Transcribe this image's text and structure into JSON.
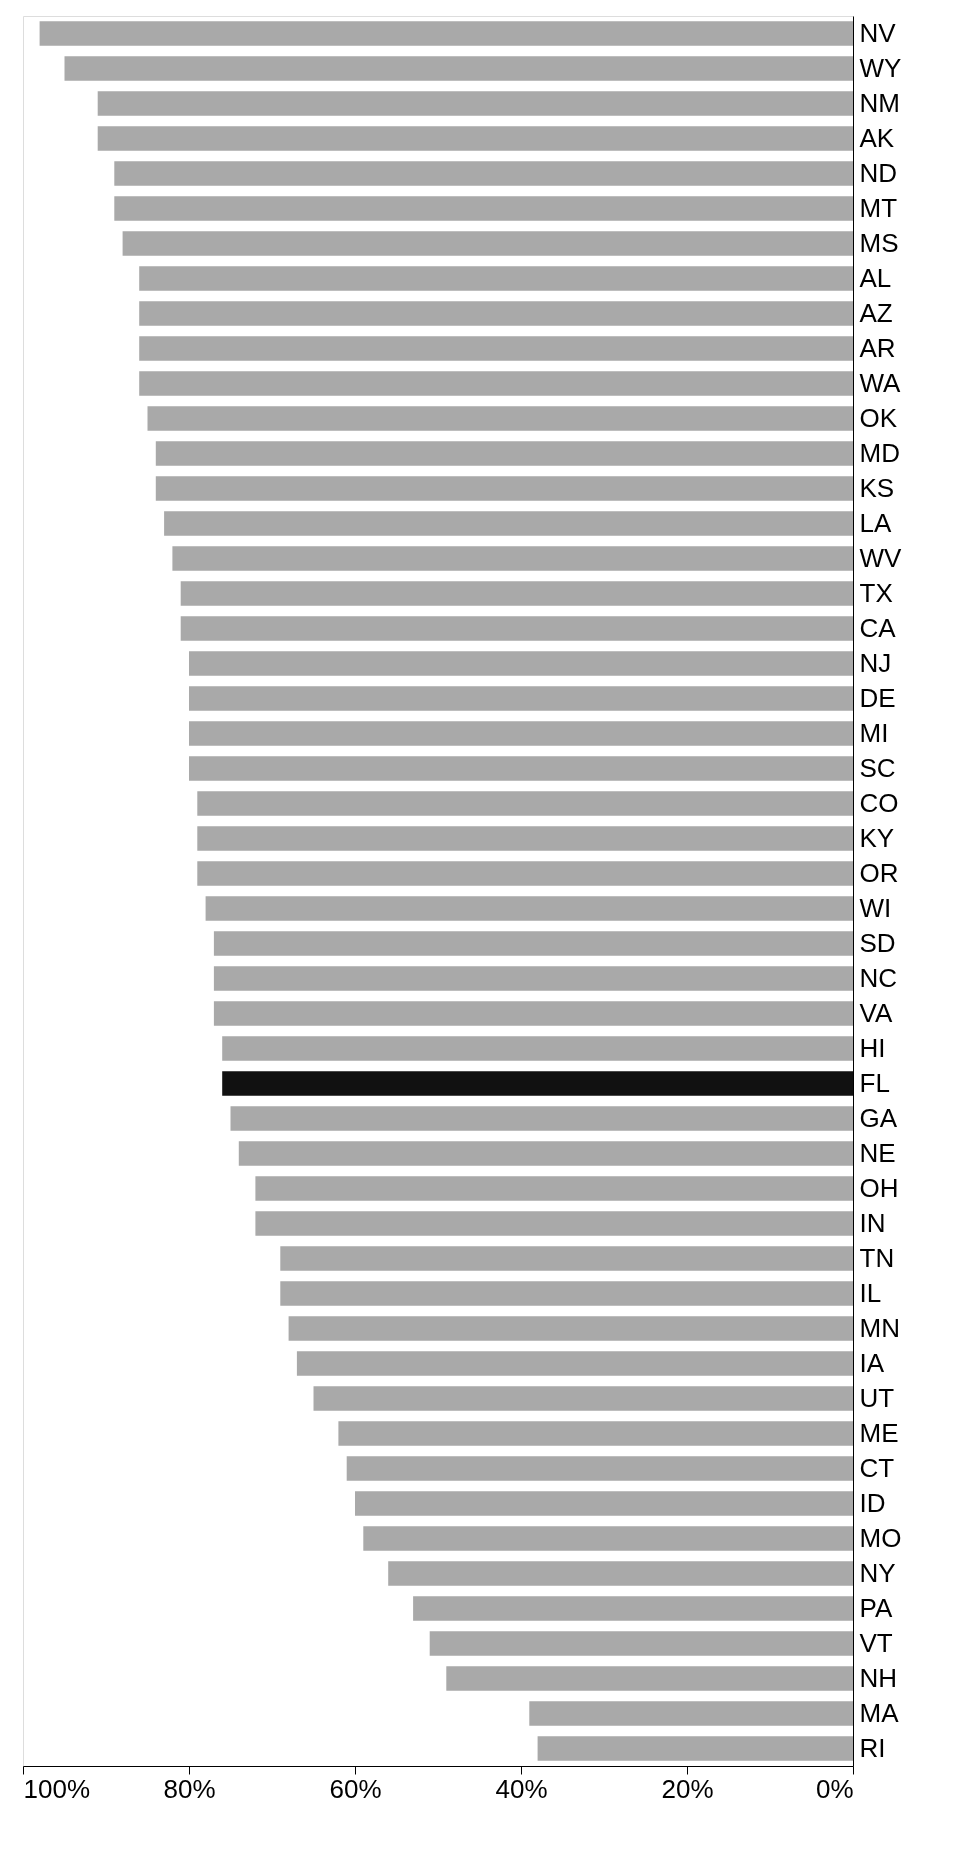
{
  "chart_data": {
    "type": "bar",
    "orientation": "horizontal",
    "categories": [
      "NV",
      "WY",
      "NM",
      "AK",
      "ND",
      "MT",
      "MS",
      "AL",
      "AZ",
      "AR",
      "WA",
      "OK",
      "MD",
      "KS",
      "LA",
      "WV",
      "TX",
      "CA",
      "NJ",
      "DE",
      "MI",
      "SC",
      "CO",
      "KY",
      "OR",
      "WI",
      "SD",
      "NC",
      "VA",
      "HI",
      "FL",
      "GA",
      "NE",
      "OH",
      "IN",
      "TN",
      "IL",
      "MN",
      "IA",
      "UT",
      "ME",
      "CT",
      "ID",
      "MO",
      "NY",
      "PA",
      "VT",
      "NH",
      "MA",
      "RI"
    ],
    "values": [
      98,
      95,
      91,
      91,
      89,
      89,
      88,
      86,
      86,
      86,
      86,
      85,
      84,
      84,
      83,
      82,
      81,
      81,
      80,
      80,
      80,
      80,
      79,
      79,
      79,
      78,
      77,
      77,
      77,
      76,
      76,
      75,
      74,
      72,
      72,
      69,
      69,
      68,
      67,
      65,
      62,
      61,
      60,
      59,
      56,
      53,
      51,
      49,
      39,
      38
    ],
    "colors": [
      "#a9a9a9",
      "#a9a9a9",
      "#a9a9a9",
      "#a9a9a9",
      "#a9a9a9",
      "#a9a9a9",
      "#a9a9a9",
      "#a9a9a9",
      "#a9a9a9",
      "#a9a9a9",
      "#a9a9a9",
      "#a9a9a9",
      "#a9a9a9",
      "#a9a9a9",
      "#a9a9a9",
      "#a9a9a9",
      "#a9a9a9",
      "#a9a9a9",
      "#a9a9a9",
      "#a9a9a9",
      "#a9a9a9",
      "#a9a9a9",
      "#a9a9a9",
      "#a9a9a9",
      "#a9a9a9",
      "#a9a9a9",
      "#a9a9a9",
      "#a9a9a9",
      "#a9a9a9",
      "#a9a9a9",
      "#111111",
      "#a9a9a9",
      "#a9a9a9",
      "#a9a9a9",
      "#a9a9a9",
      "#a9a9a9",
      "#a9a9a9",
      "#a9a9a9",
      "#a9a9a9",
      "#a9a9a9",
      "#a9a9a9",
      "#a9a9a9",
      "#a9a9a9",
      "#a9a9a9",
      "#a9a9a9",
      "#a9a9a9",
      "#a9a9a9",
      "#a9a9a9",
      "#a9a9a9",
      "#a9a9a9"
    ],
    "xlim": [
      100,
      0
    ],
    "xticks": [
      {
        "value": 100,
        "label": "100%"
      },
      {
        "value": 80,
        "label": "80%"
      },
      {
        "value": 60,
        "label": "60%"
      },
      {
        "value": 40,
        "label": "40%"
      },
      {
        "value": 20,
        "label": "20%"
      },
      {
        "value": 0,
        "label": "0%"
      }
    ],
    "grid": false,
    "legend": false
  }
}
